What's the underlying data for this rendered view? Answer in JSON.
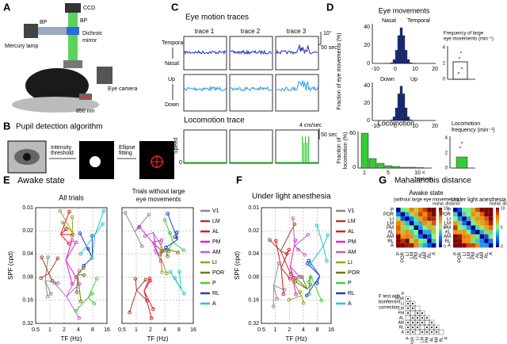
{
  "A": {
    "label": "A",
    "ccd": "CCD",
    "bp1": "BP",
    "bp2": "BP",
    "mirror": [
      "Dichroic",
      "mirror"
    ],
    "lamp": "Mercury lamp",
    "camera": "Eye camera",
    "nm": "850 nm"
  },
  "B": {
    "label": "B",
    "title": "Pupil detection algorithm",
    "step1": [
      "Intensity",
      "threshold"
    ],
    "step2": [
      "Ellipse",
      "fitting"
    ]
  },
  "C": {
    "label": "C",
    "title": "Eye motion traces",
    "traces": [
      "trace 1",
      "trace 2",
      "trace 3"
    ],
    "scale_deg": "10°",
    "scale_sec": "50 sec",
    "directions": [
      "Temporal",
      "Nasal",
      "Up",
      "Down"
    ],
    "loco_title": "Locomotion trace",
    "loco_scale": "4 cm/sec",
    "loco_sec": "50 sec",
    "speed": "Speed",
    "zero": "0"
  },
  "D": {
    "label": "D",
    "title": "Eye movements",
    "h1_dirs": [
      "Nasal",
      "Temporal"
    ],
    "h2_dirs": [
      "Down",
      "Up"
    ],
    "xticks": [
      "-10",
      "0",
      "10",
      "20"
    ],
    "yticks": [
      "40",
      "20",
      "0"
    ],
    "ylabel": "Fraction of eye movements (%)",
    "freq_label": [
      "Frequency of large",
      "eye movements (min⁻¹)"
    ],
    "freq_ticks": [
      "4",
      "2",
      "0"
    ],
    "loco_title": "Locomotion",
    "loco_ylabel": [
      "Fraction of",
      "locomotion (%)"
    ],
    "loco_yticks": [
      "60",
      "0"
    ],
    "loco_xticks": [
      "1",
      "5",
      "10 <"
    ],
    "loco_unit": "(cm/sec)",
    "loco_freq": [
      "Locomotion",
      "frequency (min⁻¹)"
    ],
    "loco_freq_ticks": [
      "4",
      "2",
      "0"
    ]
  },
  "E": {
    "label": "E",
    "title": "Awake state",
    "sub1": "All trials",
    "sub2": [
      "Trials without large",
      "eye movements"
    ],
    "ylabel": "SPF (cpd)",
    "xlabel": "TF (Hz)",
    "yticks": [
      "0.01",
      "0.02",
      "0.04",
      "0.08",
      "0.16",
      "0.32"
    ],
    "xticks": [
      "0.5",
      "1",
      "2",
      "4",
      "8",
      "16"
    ]
  },
  "legend": [
    {
      "name": "V1",
      "color": "#8c8c8c"
    },
    {
      "name": "LM",
      "color": "#a0412d"
    },
    {
      "name": "AL",
      "color": "#e41a1c"
    },
    {
      "name": "PM",
      "color": "#e61fd6"
    },
    {
      "name": "AM",
      "color": "#c060c8"
    },
    {
      "name": "LI",
      "color": "#9ca11c"
    },
    {
      "name": "POR",
      "color": "#6e7a10"
    },
    {
      "name": "P",
      "color": "#3ccf3c"
    },
    {
      "name": "RL",
      "color": "#2040c0"
    },
    {
      "name": "A",
      "color": "#22c8d0"
    }
  ],
  "F": {
    "label": "F",
    "title": "Under light anesthesia"
  },
  "G": {
    "label": "G",
    "title": "Mahalanobis distance",
    "awake": [
      "Awake state",
      "(without large eye movements)"
    ],
    "anest": "Under light anesthesia",
    "cbar": "mahal. distance",
    "cbar_ticks": [
      "10",
      "5",
      "0"
    ],
    "areas": [
      "P",
      "POR",
      "LI",
      "LM",
      "PM",
      "AL",
      "AM",
      "RL",
      "A"
    ],
    "ftest": [
      "F test with",
      "bonferroni",
      "correction"
    ]
  }
}
